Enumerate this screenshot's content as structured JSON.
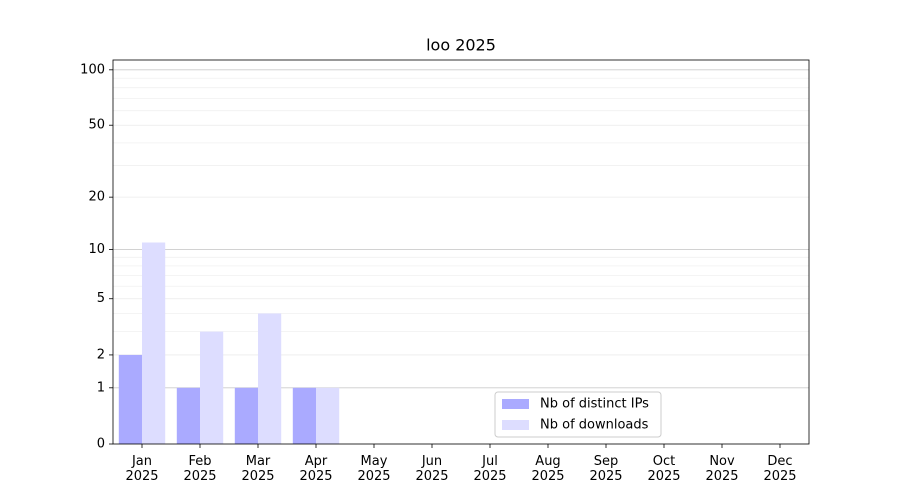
{
  "chart_data": {
    "type": "bar",
    "title": "loo 2025",
    "categories": [
      "Jan\n2025",
      "Feb\n2025",
      "Mar\n2025",
      "Apr\n2025",
      "May\n2025",
      "Jun\n2025",
      "Jul\n2025",
      "Aug\n2025",
      "Sep\n2025",
      "Oct\n2025",
      "Nov\n2025",
      "Dec\n2025"
    ],
    "series": [
      {
        "name": "Nb of distinct IPs",
        "color": "#aaaaff",
        "values": [
          2,
          1,
          1,
          1,
          0,
          0,
          0,
          0,
          0,
          0,
          0,
          0
        ]
      },
      {
        "name": "Nb of downloads",
        "color": "#ddddff",
        "values": [
          11,
          3,
          4,
          1,
          0,
          0,
          0,
          0,
          0,
          0,
          0,
          0
        ]
      }
    ],
    "yscale": "log1p",
    "ylim": [
      0,
      113
    ],
    "yticks": [
      0,
      1,
      2,
      5,
      10,
      20,
      50,
      100
    ],
    "yminor": [
      3,
      4,
      6,
      7,
      8,
      9,
      30,
      40,
      60,
      70,
      80,
      90
    ],
    "grid": true,
    "legend": "lower center"
  }
}
